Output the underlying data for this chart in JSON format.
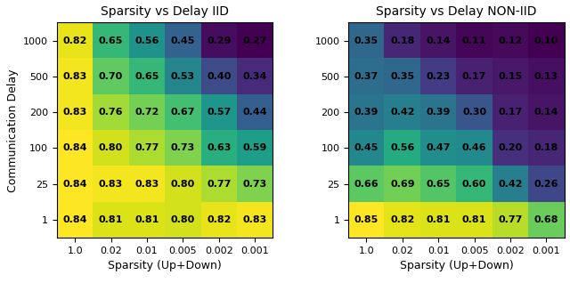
{
  "title_iid": "Sparsity vs Delay IID",
  "title_noniid": "Sparsity vs Delay NON-IID",
  "xlabel": "Sparsity (Up+Down)",
  "ylabel": "Communication Delay",
  "x_labels": [
    "1.0",
    "0.02",
    "0.01",
    "0.005",
    "0.002",
    "0.001"
  ],
  "y_labels": [
    "1",
    "25",
    "100",
    "200",
    "500",
    "1000"
  ],
  "iid_data": [
    [
      0.84,
      0.81,
      0.81,
      0.8,
      0.82,
      0.83
    ],
    [
      0.84,
      0.83,
      0.83,
      0.8,
      0.77,
      0.73
    ],
    [
      0.84,
      0.8,
      0.77,
      0.73,
      0.63,
      0.59
    ],
    [
      0.83,
      0.76,
      0.72,
      0.67,
      0.57,
      0.44
    ],
    [
      0.83,
      0.7,
      0.65,
      0.53,
      0.4,
      0.34
    ],
    [
      0.82,
      0.65,
      0.56,
      0.45,
      0.29,
      0.27
    ]
  ],
  "noniid_data": [
    [
      0.85,
      0.82,
      0.81,
      0.81,
      0.77,
      0.68
    ],
    [
      0.66,
      0.69,
      0.65,
      0.6,
      0.42,
      0.26
    ],
    [
      0.45,
      0.56,
      0.47,
      0.46,
      0.2,
      0.18
    ],
    [
      0.39,
      0.42,
      0.39,
      0.3,
      0.17,
      0.14
    ],
    [
      0.37,
      0.35,
      0.23,
      0.17,
      0.15,
      0.13
    ],
    [
      0.35,
      0.18,
      0.14,
      0.11,
      0.12,
      0.1
    ]
  ],
  "colormap": "viridis",
  "text_color": "black",
  "fontsize_title": 10,
  "fontsize_label": 9,
  "fontsize_tick": 8,
  "fontsize_annot": 8
}
